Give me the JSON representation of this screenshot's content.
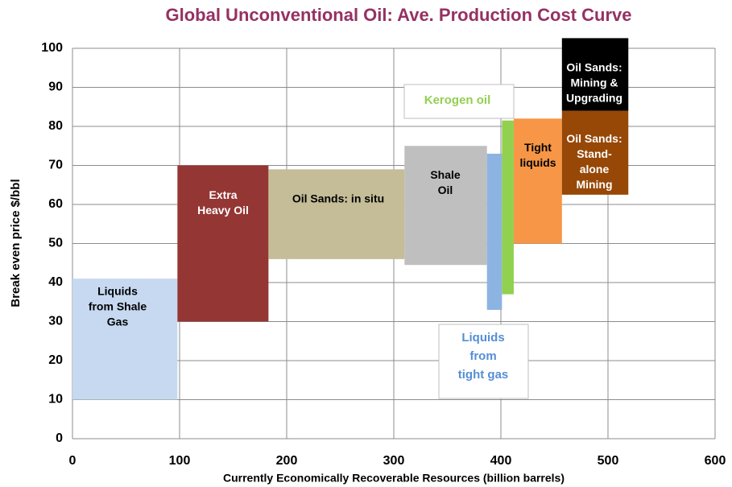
{
  "chart_data": {
    "type": "cost-curve",
    "title": "Global Unconventional Oil: Ave. Production Cost Curve",
    "xlabel": "Currently Economically Recoverable Resources (billion barrels)",
    "ylabel": "Break even price $/bbl",
    "xlim": [
      0,
      600
    ],
    "xticks": [
      0,
      100,
      200,
      300,
      400,
      500,
      600
    ],
    "ylim": [
      0,
      100
    ],
    "yticks": [
      0,
      10,
      20,
      30,
      40,
      50,
      60,
      70,
      80,
      90,
      100
    ],
    "grid": true,
    "series": [
      {
        "label": [
          "Liquids",
          "from Shale",
          "Gas"
        ],
        "color": "#c6d9f1",
        "label_color": "#000000",
        "x": [
          0,
          98
        ],
        "values": [
          10,
          41
        ]
      },
      {
        "label": [
          "Extra",
          "Heavy Oil"
        ],
        "color": "#943634",
        "label_color": "#ffffff",
        "x": [
          98,
          183
        ],
        "values": [
          30,
          70
        ]
      },
      {
        "label": [
          "Oil Sands: in situ"
        ],
        "color": "#c4bd97",
        "label_color": "#000000",
        "x": [
          183,
          310
        ],
        "values": [
          46,
          69
        ]
      },
      {
        "label": [
          "Shale",
          "Oil"
        ],
        "color": "#bfbfbf",
        "label_color": "#000000",
        "x": [
          310,
          387
        ],
        "values": [
          44.5,
          75
        ]
      },
      {
        "label": [
          "Liquids",
          "from",
          "tight gas"
        ],
        "color": "#8db3e2",
        "label_color": "#558ed5",
        "x": [
          387,
          401
        ],
        "values": [
          33,
          73
        ]
      },
      {
        "label": [
          "Kerogen oil"
        ],
        "color": "#92d050",
        "label_color": "#92d050",
        "x": [
          401,
          412
        ],
        "values": [
          37,
          81.5
        ]
      },
      {
        "label": [
          "Tight",
          "liquids"
        ],
        "color": "#f79646",
        "label_color": "#000000",
        "x": [
          412,
          457
        ],
        "values": [
          50,
          82
        ]
      },
      {
        "label": [
          "Oil Sands:",
          "Stand-",
          "alone",
          "Mining"
        ],
        "color": "#974806",
        "label_color": "#ffffff",
        "x": [
          457,
          519
        ],
        "values": [
          62.5,
          84
        ]
      },
      {
        "label": [
          "Oil Sands:",
          "Mining &",
          "Upgrading"
        ],
        "color": "#000000",
        "label_color": "#ffffff",
        "x": [
          457,
          519
        ],
        "values": [
          84,
          102.6
        ]
      }
    ]
  }
}
